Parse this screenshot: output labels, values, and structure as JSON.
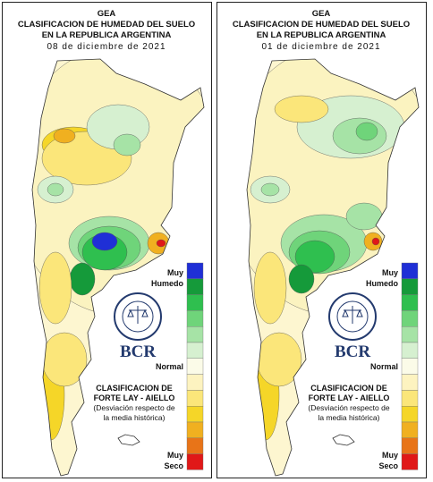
{
  "panels": [
    {
      "header": {
        "org": "GEA",
        "title_line1": "CLASIFICACION DE HUMEDAD DEL SUELO",
        "title_line2": "EN LA REPUBLICA ARGENTINA",
        "date": "08 de diciembre de 2021"
      },
      "legend": {
        "top_label_1": "Muy",
        "top_label_2": "Humedo",
        "mid_label": "Normal",
        "bottom_label_1": "Muy",
        "bottom_label_2": "Seco"
      },
      "logo": {
        "text": "BCR"
      },
      "caption": [
        "CLASIFICACION DE",
        "FORTE LAY - AIELLO",
        "(Desviación respecto de",
        "la media histórica)"
      ]
    },
    {
      "header": {
        "org": "GEA",
        "title_line1": "CLASIFICACION DE HUMEDAD DEL SUELO",
        "title_line2": "EN LA REPUBLICA ARGENTINA",
        "date": "01 de diciembre de 2021"
      },
      "legend": {
        "top_label_1": "Muy",
        "top_label_2": "Humedo",
        "mid_label": "Normal",
        "bottom_label_1": "Muy",
        "bottom_label_2": "Seco"
      },
      "logo": {
        "text": "BCR"
      },
      "caption": [
        "CLASIFICACION DE",
        "FORTE LAY - AIELLO",
        "(Desviación respecto de",
        "la media histórica)"
      ]
    }
  ]
}
